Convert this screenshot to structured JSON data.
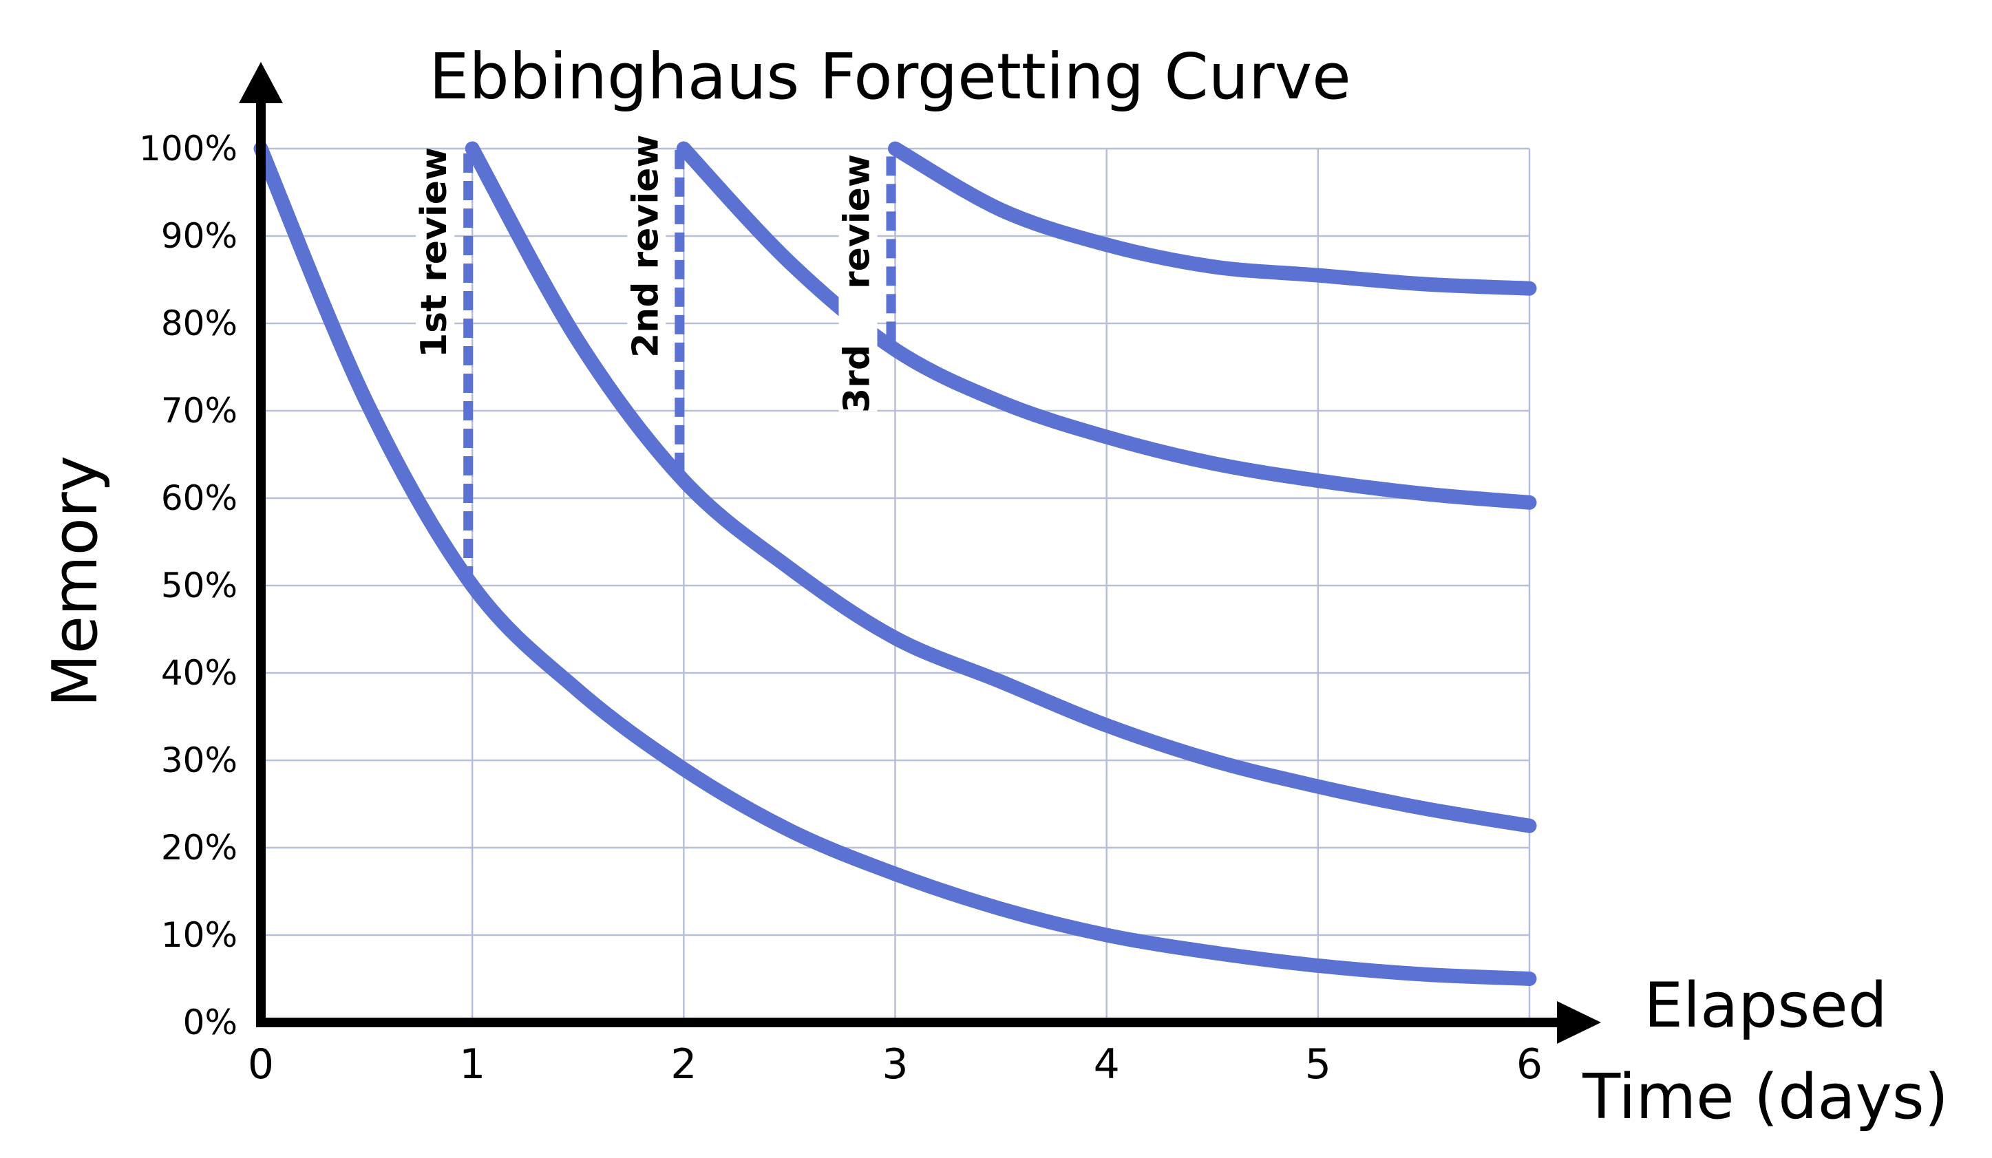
{
  "chart_data": {
    "type": "line",
    "title": "Ebbinghaus Forgetting Curve",
    "ylabel": "Memory",
    "xlabel_lines": [
      "Elapsed",
      "Time (days)"
    ],
    "xlim": [
      0,
      6
    ],
    "ylim": [
      0,
      100
    ],
    "x_ticks": [
      "0",
      "1",
      "2",
      "3",
      "4",
      "5",
      "6"
    ],
    "y_ticks": [
      "0%",
      "10%",
      "20%",
      "30%",
      "40%",
      "50%",
      "60%",
      "70%",
      "80%",
      "90%",
      "100%"
    ],
    "grid": true,
    "line_color": "#5b72d3",
    "series": [
      {
        "x": [
          0,
          0.5,
          1,
          1.5,
          2,
          2.5,
          3,
          3.5,
          4,
          4.5,
          5,
          5.5,
          6
        ],
        "y": [
          100,
          71,
          50,
          38,
          29,
          22,
          17,
          13,
          10,
          8,
          6.5,
          5.5,
          5
        ]
      },
      {
        "x": [
          1,
          1.5,
          2,
          2.5,
          3,
          3.5,
          4,
          4.5,
          5,
          5.5,
          6
        ],
        "y": [
          100,
          78,
          62,
          52,
          44,
          39,
          34,
          30,
          27,
          24.5,
          22.5
        ]
      },
      {
        "x": [
          2,
          2.5,
          3,
          3.5,
          4,
          4.5,
          5,
          5.5,
          6
        ],
        "y": [
          100,
          87,
          77,
          71,
          67,
          64,
          62,
          60.5,
          59.5
        ]
      },
      {
        "x": [
          3,
          3.5,
          4,
          4.5,
          5,
          5.5,
          6
        ],
        "y": [
          100,
          93,
          89,
          86.5,
          85.5,
          84.5,
          84
        ]
      }
    ],
    "reviews": [
      {
        "x": 1,
        "from": 50,
        "to": 100,
        "label": [
          "1st review"
        ]
      },
      {
        "x": 2,
        "from": 63,
        "to": 100,
        "label": [
          "2nd review"
        ]
      },
      {
        "x": 3,
        "from": 78,
        "to": 100,
        "label": [
          "review",
          "3rd"
        ]
      }
    ]
  }
}
